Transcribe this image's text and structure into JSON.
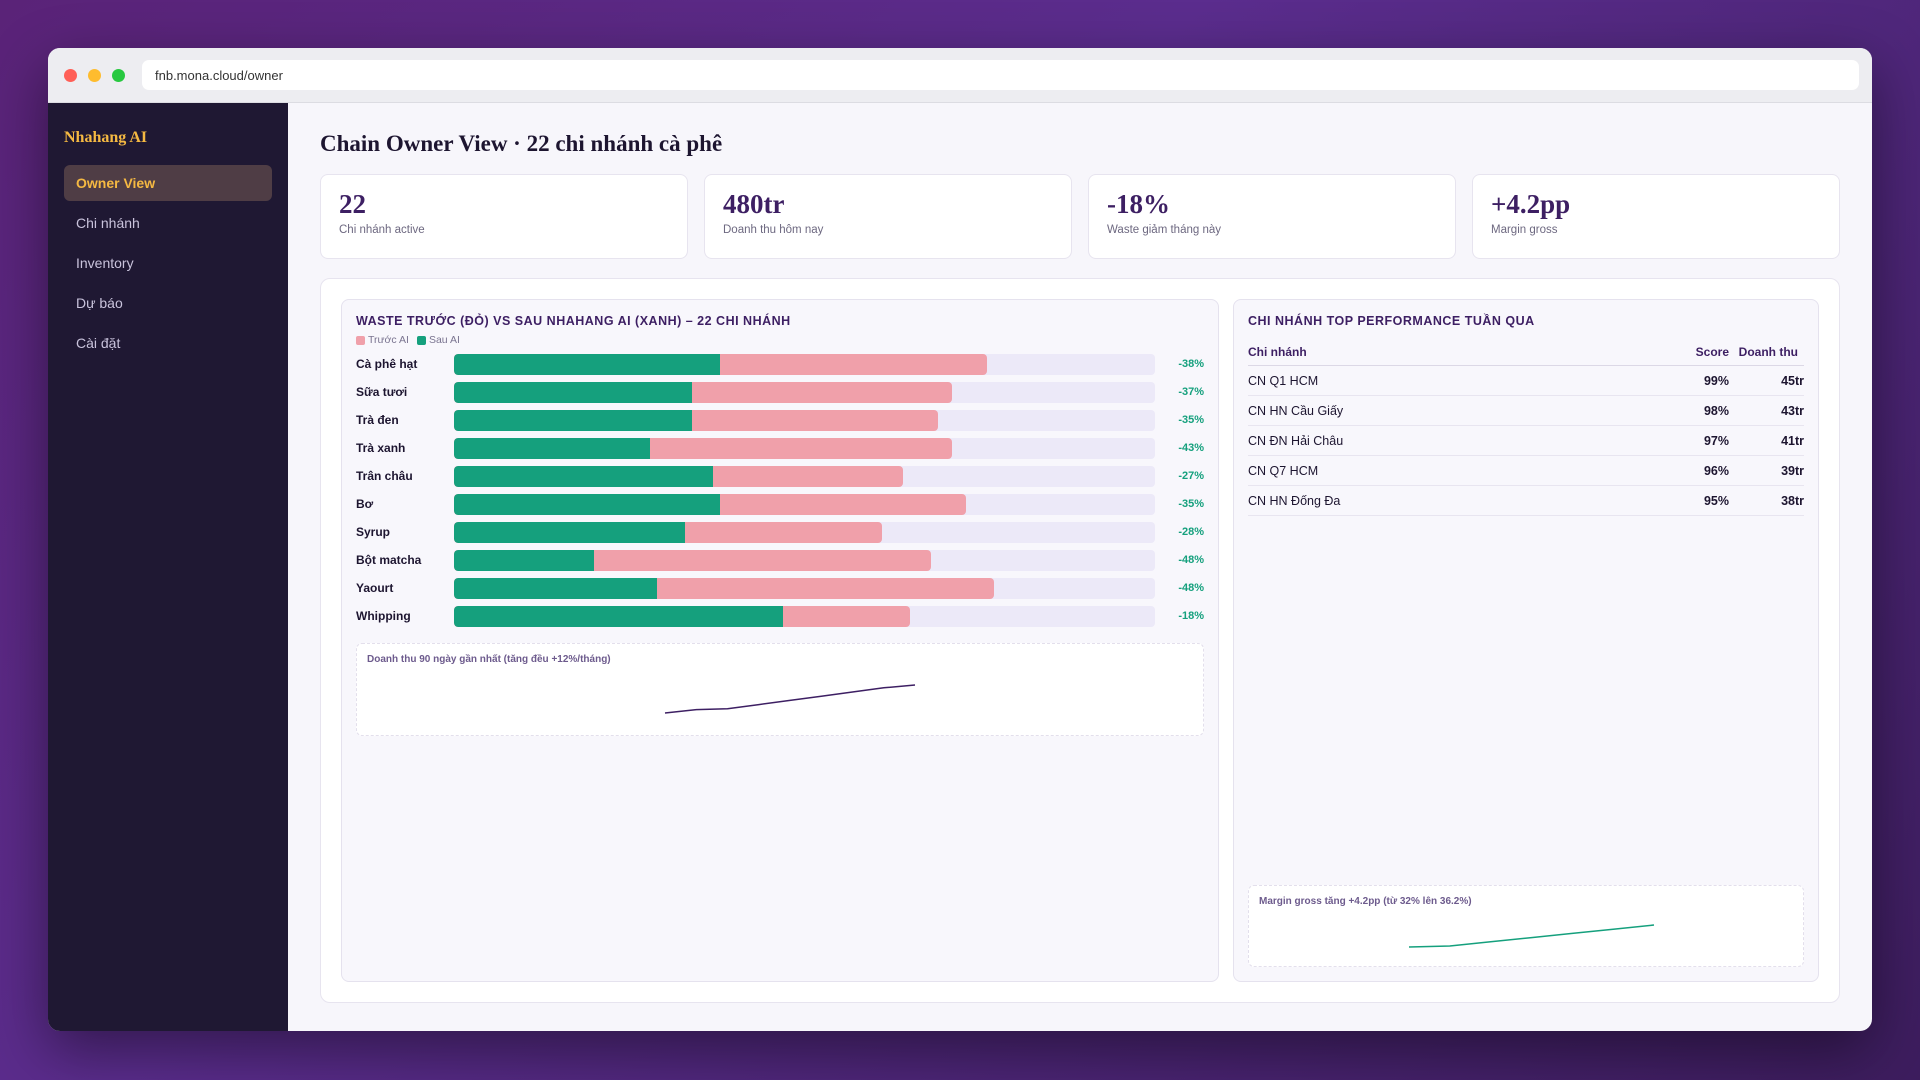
{
  "browser": {
    "url": "fnb.mona.cloud/owner"
  },
  "sidebar": {
    "brand": "Nhahang AI",
    "items": [
      {
        "label": "Owner View",
        "active": true
      },
      {
        "label": "Chi nhánh"
      },
      {
        "label": "Inventory"
      },
      {
        "label": "Dự báo"
      },
      {
        "label": "Cài đặt"
      }
    ]
  },
  "page": {
    "title": "Chain Owner View · 22 chi nhánh cà phê"
  },
  "kpis": [
    {
      "value": "22",
      "label": "Chi nhánh active"
    },
    {
      "value": "480tr",
      "label": "Doanh thu hôm nay"
    },
    {
      "value": "-18%",
      "label": "Waste giảm tháng này"
    },
    {
      "value": "+4.2pp",
      "label": "Margin gross"
    }
  ],
  "waste_panel": {
    "title": "Waste trước (đỏ) vs sau Nhahang AI (xanh) – 22 chi nhánh",
    "legend_before": "Trước AI",
    "legend_after": "Sau AI",
    "spark_caption": "Doanh thu 90 ngày gần nhất (tăng đều +12%/tháng)"
  },
  "perf_panel": {
    "title": "Chi nhánh top performance tuần qua",
    "headers": {
      "branch": "Chi nhánh",
      "score": "Score",
      "revenue": "Doanh thu"
    },
    "rows": [
      {
        "branch": "CN Q1 HCM",
        "score": "99%",
        "revenue": "45tr"
      },
      {
        "branch": "CN HN Cầu Giấy",
        "score": "98%",
        "revenue": "43tr"
      },
      {
        "branch": "CN ĐN Hải Châu",
        "score": "97%",
        "revenue": "41tr"
      },
      {
        "branch": "CN Q7 HCM",
        "score": "96%",
        "revenue": "39tr"
      },
      {
        "branch": "CN HN Đống Đa",
        "score": "95%",
        "revenue": "38tr"
      }
    ],
    "spark_caption": "Margin gross tăng +4.2pp (từ 32% lên 36.2%)"
  },
  "colors": {
    "before": "#f0a0aa",
    "after": "#15a07d",
    "accent": "#3d1f63",
    "brand": "#f5b942"
  },
  "chart_data": [
    {
      "type": "bar",
      "title": "Waste trước (đỏ) vs sau Nhahang AI (xanh) – 22 chi nhánh",
      "categories": [
        "Cà phê hạt",
        "Sữa tươi",
        "Trà đen",
        "Trà xanh",
        "Trân châu",
        "Bơ",
        "Syrup",
        "Bột matcha",
        "Yaourt",
        "Whipping"
      ],
      "series": [
        {
          "name": "Trước AI",
          "values": [
            76,
            71,
            69,
            71,
            64,
            73,
            61,
            68,
            77,
            65
          ]
        },
        {
          "name": "Sau AI",
          "values": [
            38,
            34,
            34,
            28,
            37,
            38,
            33,
            20,
            29,
            47
          ]
        }
      ],
      "change_labels": [
        "-38%",
        "-37%",
        "-35%",
        "-43%",
        "-27%",
        "-35%",
        "-28%",
        "-48%",
        "-48%",
        "-18%"
      ],
      "xlim": [
        0,
        100
      ]
    },
    {
      "type": "line",
      "title": "Doanh thu 90 ngày gần nhất (tăng đều +12%/tháng)",
      "series": [
        {
          "values": [
            0,
            0.12,
            0.15,
            0.3,
            0.45,
            0.6,
            0.75,
            0.9,
            1.0
          ]
        }
      ]
    },
    {
      "type": "line",
      "title": "Margin gross tăng +4.2pp (từ 32% lên 36.2%)",
      "series": [
        {
          "values": [
            32,
            32.2,
            33,
            33.8,
            34.6,
            35.4,
            36.2
          ]
        }
      ]
    }
  ]
}
